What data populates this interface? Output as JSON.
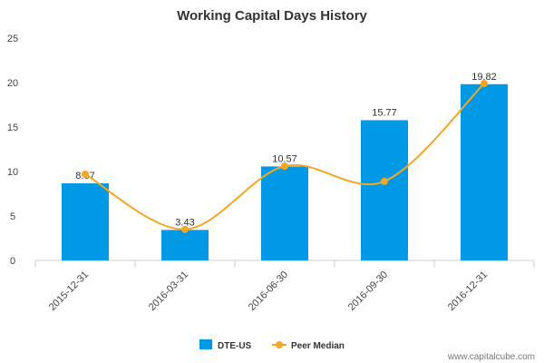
{
  "chart_data": {
    "type": "bar",
    "title": "Working Capital Days History",
    "categories": [
      "2015-12-31",
      "2016-03-31",
      "2016-06-30",
      "2016-09-30",
      "2016-12-31"
    ],
    "series": [
      {
        "name": "DTE-US",
        "type": "bar",
        "values": [
          8.67,
          3.43,
          10.57,
          15.77,
          19.82
        ],
        "color": "#0099e5"
      },
      {
        "name": "Peer Median",
        "type": "line",
        "values": [
          9.7,
          3.5,
          10.6,
          8.9,
          19.9
        ],
        "color": "#f5a623"
      }
    ],
    "data_labels": [
      "8.67",
      "3.43",
      "10.57",
      "15.77",
      "19.82"
    ],
    "ylim": [
      0,
      25
    ],
    "yticks": [
      0,
      5,
      10,
      15,
      20,
      25
    ],
    "xlabel": "",
    "ylabel": "",
    "grid": false,
    "legend": "bottom-center"
  },
  "watermark": "www.capitalcube.com"
}
